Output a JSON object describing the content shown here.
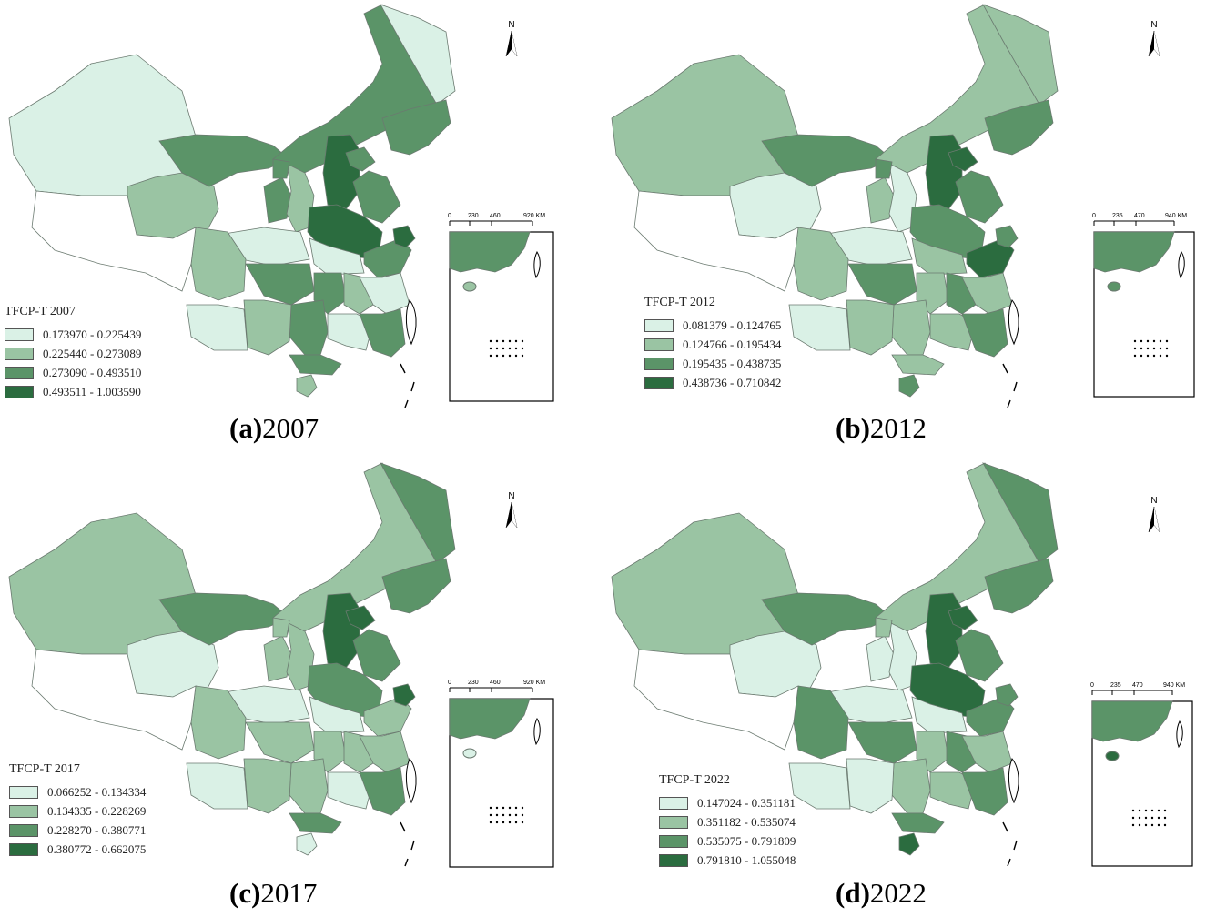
{
  "colors": {
    "class1": "#daf1e6",
    "class2": "#9ac4a3",
    "class3": "#5b9468",
    "class4": "#2b6c3f",
    "nodata": "#ffffff",
    "border": "#6b7a70"
  },
  "north_label": "N",
  "panels": [
    {
      "id": "a",
      "caption_tag": "(a)",
      "caption_year": "2007",
      "legend_title": "TFCP-T 2007",
      "legend": [
        "0.173970 - 0.225439",
        "0.225440 - 0.273089",
        "0.273090 - 0.493510",
        "0.493511 - 1.003590"
      ],
      "scale": [
        "0",
        "230",
        "460",
        "920 KM"
      ],
      "classes": [
        0,
        1,
        2,
        2,
        0,
        2,
        3,
        2,
        1,
        3,
        2,
        0,
        0,
        1,
        2,
        2,
        1,
        2,
        0,
        0,
        2,
        2,
        1,
        0,
        2,
        2,
        3,
        0,
        2,
        1
      ]
    },
    {
      "id": "b",
      "caption_tag": "(b)",
      "caption_year": "2012",
      "legend_title": "TFCP-T 2012",
      "legend": [
        "0.081379 - 0.124765",
        "0.124766 - 0.195434",
        "0.195435 - 0.438735",
        "0.438736 - 0.710842"
      ],
      "scale": [
        "0",
        "235",
        "470",
        "940 KM"
      ],
      "classes": [
        1,
        0,
        2,
        1,
        1,
        2,
        3,
        1,
        0,
        2,
        2,
        1,
        0,
        1,
        2,
        1,
        2,
        3,
        1,
        1,
        2,
        1,
        1,
        0,
        3,
        2,
        2,
        1,
        1,
        2
      ]
    },
    {
      "id": "c",
      "caption_tag": "(c)",
      "caption_year": "2017",
      "legend_title": "TFCP-T 2017",
      "legend": [
        "0.066252 - 0.134334",
        "0.134335 - 0.228269",
        "0.228270 - 0.380771",
        "0.380772 - 0.662075"
      ],
      "scale": [
        "0",
        "230",
        "460",
        "920 KM"
      ],
      "classes": [
        1,
        0,
        2,
        1,
        2,
        2,
        3,
        1,
        1,
        2,
        2,
        0,
        0,
        1,
        1,
        1,
        1,
        1,
        1,
        0,
        2,
        1,
        1,
        0,
        3,
        1,
        3,
        1,
        2,
        0
      ]
    },
    {
      "id": "d",
      "caption_tag": "(d)",
      "caption_year": "2022",
      "legend_title": "TFCP-T 2022",
      "legend": [
        "0.147024 - 0.351181",
        "0.351182 - 0.535074",
        "0.535075 - 0.791809",
        "0.791810 - 1.055048"
      ],
      "scale": [
        "0",
        "235",
        "470",
        "940 KM"
      ],
      "classes": [
        1,
        0,
        2,
        1,
        2,
        2,
        3,
        0,
        0,
        3,
        2,
        0,
        0,
        2,
        2,
        1,
        2,
        2,
        1,
        1,
        2,
        1,
        0,
        0,
        3,
        1,
        2,
        2,
        2,
        3
      ]
    }
  ]
}
